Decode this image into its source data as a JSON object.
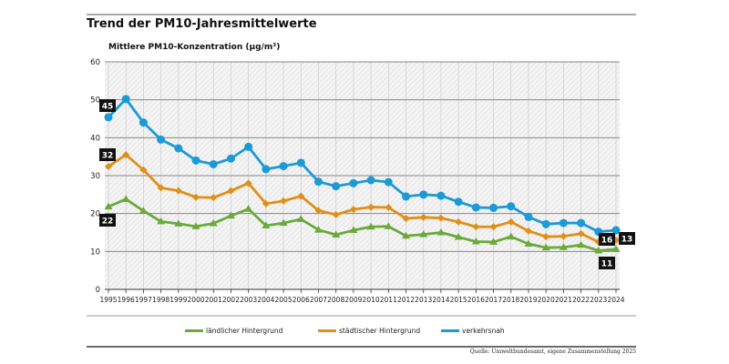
{
  "chart_data": {
    "type": "line",
    "title": "Trend der PM10-Jahresmittelwerte",
    "ylabel": "Mittlere PM10-Konzentration (µg/m³)",
    "xlabel": "",
    "ylim": [
      0,
      60
    ],
    "yticks": [
      0,
      10,
      20,
      30,
      40,
      50,
      60
    ],
    "grid": true,
    "legend_position": "bottom",
    "x": [
      1995,
      1996,
      1997,
      1998,
      1999,
      2000,
      2001,
      2002,
      2003,
      2004,
      2005,
      2006,
      2007,
      2008,
      2009,
      2010,
      2011,
      2012,
      2013,
      2014,
      2015,
      2016,
      2017,
      2018,
      2019,
      2020,
      2021,
      2022,
      2023,
      2024
    ],
    "series": [
      {
        "name": "ländlicher Hintergrund",
        "color": "#6aaa3a",
        "marker": "triangle",
        "values": [
          21.8,
          23.8,
          20.7,
          17.9,
          17.3,
          16.6,
          17.4,
          19.4,
          21.2,
          16.8,
          17.5,
          18.5,
          15.7,
          14.4,
          15.6,
          16.5,
          16.6,
          14.1,
          14.5,
          15.0,
          13.8,
          12.6,
          12.5,
          13.9,
          12.0,
          11.0,
          11.1,
          11.7,
          10.2,
          10.6
        ],
        "labels": [
          {
            "year": 1995,
            "text": "22"
          },
          {
            "year": 2024,
            "text": "11"
          }
        ]
      },
      {
        "name": "städtischer Hintergrund",
        "color": "#e08f17",
        "marker": "diamond",
        "values": [
          32.4,
          35.5,
          31.5,
          26.8,
          26.0,
          24.3,
          24.2,
          26.0,
          28.0,
          22.6,
          23.3,
          24.6,
          20.8,
          19.7,
          21.1,
          21.7,
          21.6,
          18.7,
          19.0,
          18.8,
          17.8,
          16.5,
          16.5,
          17.8,
          15.4,
          13.9,
          14.0,
          14.7,
          12.5,
          13.0
        ],
        "labels": [
          {
            "year": 1995,
            "text": "32"
          },
          {
            "year": 2024,
            "text": "13"
          }
        ]
      },
      {
        "name": "verkehrsnah",
        "color": "#1b9ad6",
        "marker": "circle",
        "values": [
          45.4,
          50.2,
          44.0,
          39.5,
          37.2,
          34.0,
          33.0,
          34.5,
          37.6,
          31.7,
          32.5,
          33.4,
          28.4,
          27.2,
          28.0,
          28.8,
          28.3,
          24.5,
          25.0,
          24.7,
          23.1,
          21.6,
          21.5,
          21.9,
          19.1,
          17.2,
          17.5,
          17.5,
          15.2,
          15.6
        ],
        "labels": [
          {
            "year": 1995,
            "text": "45"
          },
          {
            "year": 2024,
            "text": "16"
          }
        ]
      }
    ]
  },
  "source": "Quelle: Umweltbundesamt, eigene Zusammenstellung 2025"
}
